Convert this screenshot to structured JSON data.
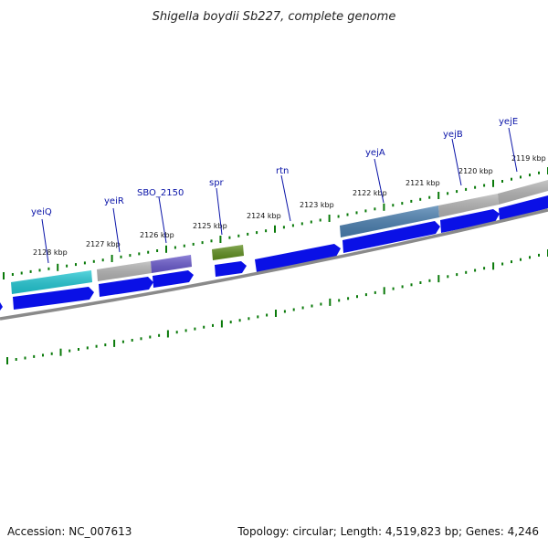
{
  "title": "Shigella boydii Sb227, complete genome",
  "footer": {
    "accession": "Accession: NC_007613",
    "summary": "Topology: circular; Length: 4,519,823 bp; Genes: 4,246"
  },
  "colors": {
    "label": "#0a14a8",
    "tick": "#0a7a0a",
    "backbone": "#8a8a8a",
    "gene_arrow": "#0a10e6"
  },
  "kbp_labels": [
    {
      "text": "2128 kbp"
    },
    {
      "text": "2127 kbp"
    },
    {
      "text": "2126 kbp"
    },
    {
      "text": "2125 kbp"
    },
    {
      "text": "2124 kbp"
    },
    {
      "text": "2123 kbp"
    },
    {
      "text": "2122 kbp"
    },
    {
      "text": "2121 kbp"
    },
    {
      "text": "2120 kbp"
    },
    {
      "text": "2119 kbp"
    }
  ],
  "genes": [
    {
      "name": "yeiQ",
      "top_color": "#22c8d4"
    },
    {
      "name": "yeiR",
      "top_color": "#b4b4b4"
    },
    {
      "name": "SBO_2150",
      "top_color": "#6a5acd"
    },
    {
      "name": "spr",
      "top_color": "#5f8f1e"
    },
    {
      "name": "rtn",
      "top_color": ""
    },
    {
      "name": "yejA",
      "top_color": "#4a7fb0"
    },
    {
      "name": "yejB",
      "top_color": "#b4b4b4"
    },
    {
      "name": "yejE",
      "top_color": "#b4b4b4"
    }
  ]
}
